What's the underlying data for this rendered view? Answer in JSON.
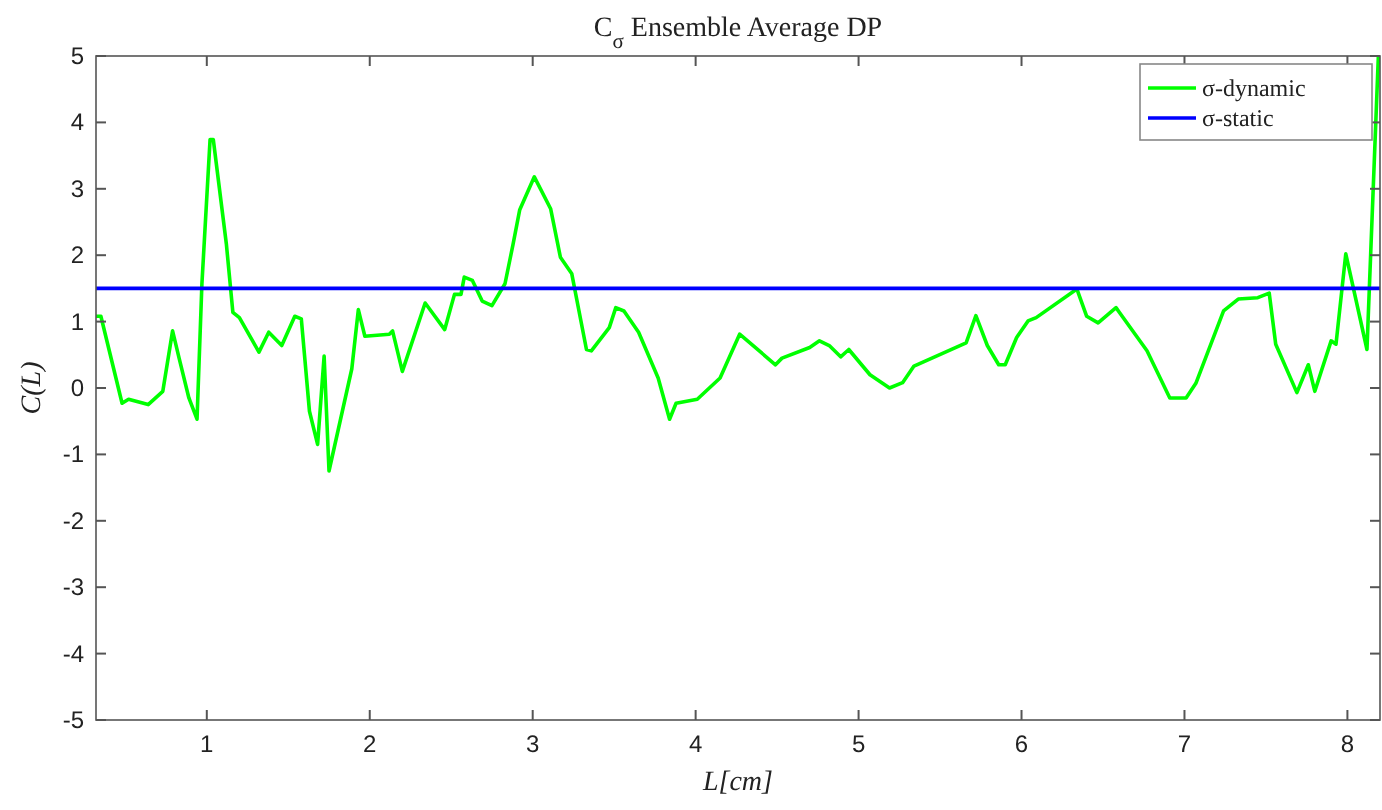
{
  "chart_data": {
    "type": "line",
    "title": "C$_{σ}$ Ensemble Average DP",
    "xlabel": "L[cm]",
    "ylabel": "C(L)",
    "xlim": [
      0.32,
      8.2
    ],
    "ylim": [
      -5,
      5
    ],
    "xticks": [
      1,
      2,
      3,
      4,
      5,
      6,
      7,
      8
    ],
    "yticks": [
      -5,
      -4,
      -3,
      -2,
      -1,
      0,
      1,
      2,
      3,
      4,
      5
    ],
    "grid": false,
    "legend": "top right",
    "marker": "none",
    "line_style": "solid",
    "series": [
      {
        "name": "σ-dynamic",
        "color": "#00ff00",
        "x": [
          0.32,
          0.35,
          0.48,
          0.52,
          0.64,
          0.73,
          0.79,
          0.83,
          0.89,
          0.94,
          0.97,
          1.02,
          1.04,
          1.12,
          1.16,
          1.2,
          1.32,
          1.38,
          1.46,
          1.54,
          1.58,
          1.63,
          1.68,
          1.72,
          1.75,
          1.89,
          1.93,
          1.97,
          2.12,
          2.14,
          2.2,
          2.34,
          2.46,
          2.52,
          2.56,
          2.58,
          2.63,
          2.69,
          2.75,
          2.83,
          2.88,
          2.92,
          3.01,
          3.11,
          3.17,
          3.24,
          3.33,
          3.36,
          3.47,
          3.51,
          3.56,
          3.65,
          3.77,
          3.84,
          3.88,
          4.01,
          4.15,
          4.27,
          4.49,
          4.53,
          4.7,
          4.76,
          4.82,
          4.89,
          4.94,
          5.07,
          5.19,
          5.27,
          5.34,
          5.66,
          5.72,
          5.79,
          5.86,
          5.9,
          5.97,
          6.04,
          6.09,
          6.34,
          6.4,
          6.47,
          6.58,
          6.6,
          6.77,
          6.91,
          7.01,
          7.07,
          7.24,
          7.33,
          7.45,
          7.52,
          7.56,
          7.69,
          7.76,
          7.8,
          7.9,
          7.93,
          7.99,
          8.12,
          8.19
        ],
        "values": [
          1.08,
          1.08,
          -0.23,
          -0.17,
          -0.25,
          -0.05,
          0.86,
          0.45,
          -0.15,
          -0.47,
          1.57,
          3.74,
          3.74,
          2.17,
          1.14,
          1.06,
          0.54,
          0.84,
          0.64,
          1.08,
          1.04,
          -0.35,
          -0.85,
          0.48,
          -1.25,
          0.29,
          1.18,
          0.78,
          0.81,
          0.86,
          0.25,
          1.28,
          0.88,
          1.41,
          1.41,
          1.67,
          1.62,
          1.31,
          1.24,
          1.57,
          2.17,
          2.68,
          3.18,
          2.7,
          1.97,
          1.72,
          0.58,
          0.56,
          0.91,
          1.21,
          1.16,
          0.84,
          0.15,
          -0.47,
          -0.23,
          -0.17,
          0.15,
          0.81,
          0.35,
          0.45,
          0.61,
          0.71,
          0.64,
          0.47,
          0.58,
          0.2,
          0,
          0.08,
          0.33,
          0.68,
          1.09,
          0.64,
          0.35,
          0.35,
          0.76,
          1.01,
          1.06,
          1.49,
          1.08,
          0.98,
          1.21,
          1.14,
          0.56,
          -0.15,
          -0.15,
          0.07,
          1.16,
          1.34,
          1.36,
          1.43,
          0.66,
          -0.07,
          0.35,
          -0.05,
          0.71,
          0.66,
          2.02,
          0.58,
          5
        ]
      },
      {
        "name": "σ-static",
        "color": "#0000ff",
        "x": [
          0.32,
          8.2
        ],
        "values": [
          1.5,
          1.5
        ]
      }
    ]
  }
}
